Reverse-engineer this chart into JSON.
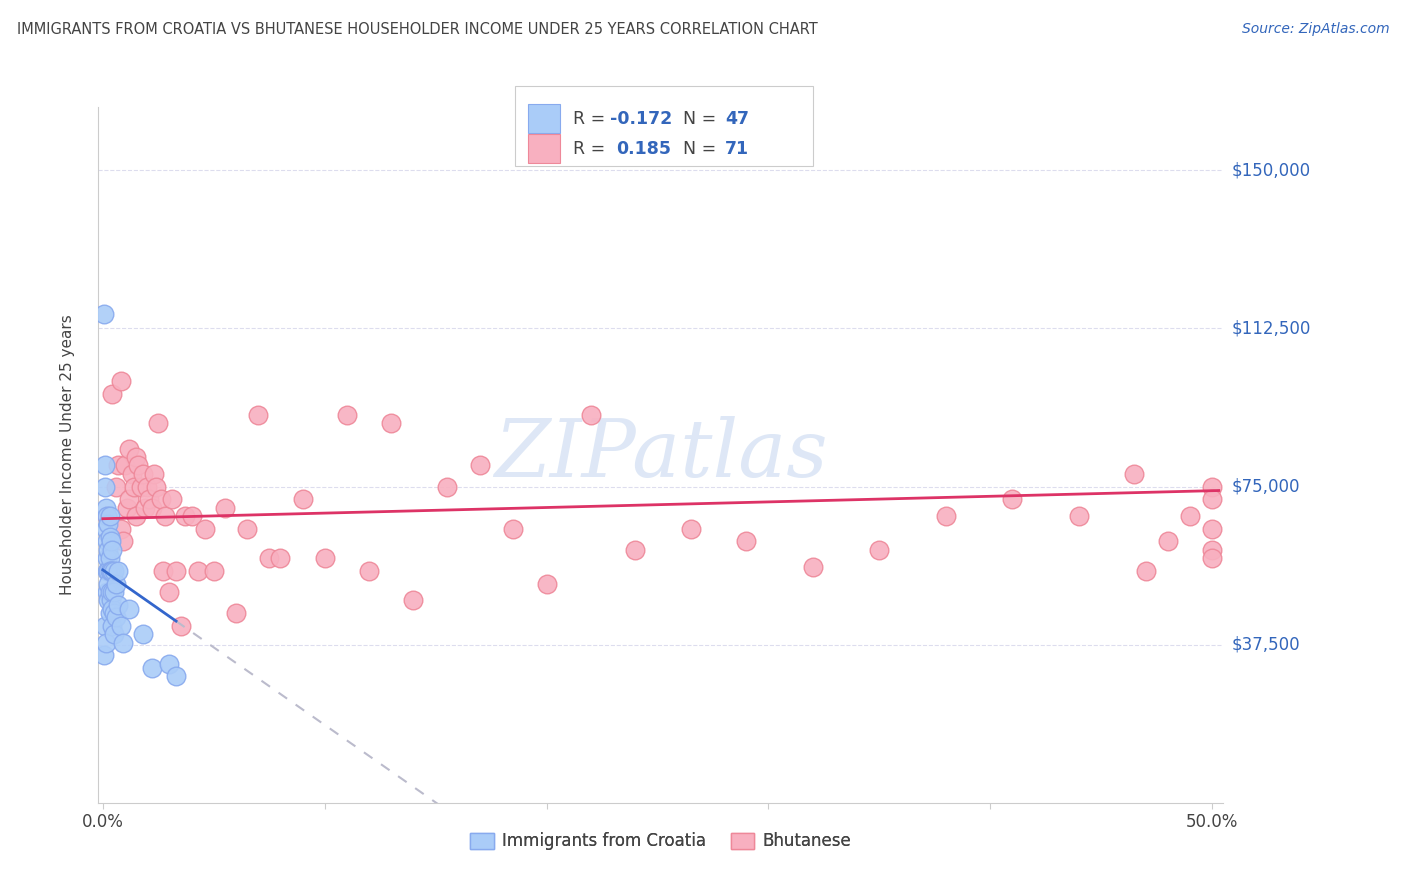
{
  "title": "IMMIGRANTS FROM CROATIA VS BHUTANESE HOUSEHOLDER INCOME UNDER 25 YEARS CORRELATION CHART",
  "source": "Source: ZipAtlas.com",
  "ylabel": "Householder Income Under 25 years",
  "ytick_labels": [
    "$37,500",
    "$75,000",
    "$112,500",
    "$150,000"
  ],
  "ytick_values": [
    37500,
    75000,
    112500,
    150000
  ],
  "ylim": [
    0,
    165000
  ],
  "xlim": [
    -0.002,
    0.505
  ],
  "croatia_R": -0.172,
  "croatia_N": 47,
  "bhutan_R": 0.185,
  "bhutan_N": 71,
  "croatia_color": "#aaccf8",
  "croatia_edge_color": "#88aaee",
  "bhutan_color": "#f8b0c0",
  "bhutan_edge_color": "#ee8899",
  "croatia_line_color": "#3366cc",
  "bhutan_line_color": "#dd3366",
  "dashed_line_color": "#bbbbcc",
  "grid_color": "#ddddee",
  "background_color": "#ffffff",
  "watermark_color": "#c8d8f0",
  "blue_text_color": "#3366bb",
  "dark_text_color": "#444444",
  "croatia_scatter_x": [
    0.0005,
    0.0005,
    0.001,
    0.001,
    0.001,
    0.0015,
    0.0015,
    0.0015,
    0.002,
    0.002,
    0.002,
    0.002,
    0.002,
    0.0025,
    0.0025,
    0.0025,
    0.0025,
    0.0025,
    0.003,
    0.003,
    0.003,
    0.003,
    0.003,
    0.003,
    0.0035,
    0.0035,
    0.0035,
    0.004,
    0.004,
    0.004,
    0.004,
    0.004,
    0.005,
    0.005,
    0.005,
    0.005,
    0.006,
    0.006,
    0.007,
    0.007,
    0.008,
    0.009,
    0.012,
    0.018,
    0.022,
    0.03,
    0.033
  ],
  "croatia_scatter_y": [
    116000,
    35000,
    80000,
    75000,
    42000,
    70000,
    65000,
    38000,
    68000,
    62000,
    58000,
    55000,
    50000,
    66000,
    60000,
    55000,
    52000,
    48000,
    68000,
    63000,
    58000,
    55000,
    50000,
    45000,
    62000,
    55000,
    48000,
    60000,
    55000,
    50000,
    46000,
    42000,
    55000,
    50000,
    45000,
    40000,
    52000,
    44000,
    55000,
    47000,
    42000,
    38000,
    46000,
    40000,
    32000,
    33000,
    30000
  ],
  "bhutan_scatter_x": [
    0.002,
    0.004,
    0.006,
    0.007,
    0.008,
    0.008,
    0.009,
    0.01,
    0.011,
    0.012,
    0.012,
    0.013,
    0.014,
    0.015,
    0.015,
    0.016,
    0.017,
    0.018,
    0.019,
    0.02,
    0.021,
    0.022,
    0.023,
    0.024,
    0.025,
    0.026,
    0.027,
    0.028,
    0.03,
    0.031,
    0.033,
    0.035,
    0.037,
    0.04,
    0.043,
    0.046,
    0.05,
    0.055,
    0.06,
    0.065,
    0.07,
    0.075,
    0.08,
    0.09,
    0.1,
    0.11,
    0.12,
    0.13,
    0.14,
    0.155,
    0.17,
    0.185,
    0.2,
    0.22,
    0.24,
    0.265,
    0.29,
    0.32,
    0.35,
    0.38,
    0.41,
    0.44,
    0.465,
    0.47,
    0.48,
    0.49,
    0.5,
    0.5,
    0.5,
    0.5,
    0.5
  ],
  "bhutan_scatter_y": [
    68000,
    97000,
    75000,
    80000,
    100000,
    65000,
    62000,
    80000,
    70000,
    84000,
    72000,
    78000,
    75000,
    82000,
    68000,
    80000,
    75000,
    78000,
    70000,
    75000,
    72000,
    70000,
    78000,
    75000,
    90000,
    72000,
    55000,
    68000,
    50000,
    72000,
    55000,
    42000,
    68000,
    68000,
    55000,
    65000,
    55000,
    70000,
    45000,
    65000,
    92000,
    58000,
    58000,
    72000,
    58000,
    92000,
    55000,
    90000,
    48000,
    75000,
    80000,
    65000,
    52000,
    92000,
    60000,
    65000,
    62000,
    56000,
    60000,
    68000,
    72000,
    68000,
    78000,
    55000,
    62000,
    68000,
    75000,
    72000,
    65000,
    60000,
    58000
  ]
}
